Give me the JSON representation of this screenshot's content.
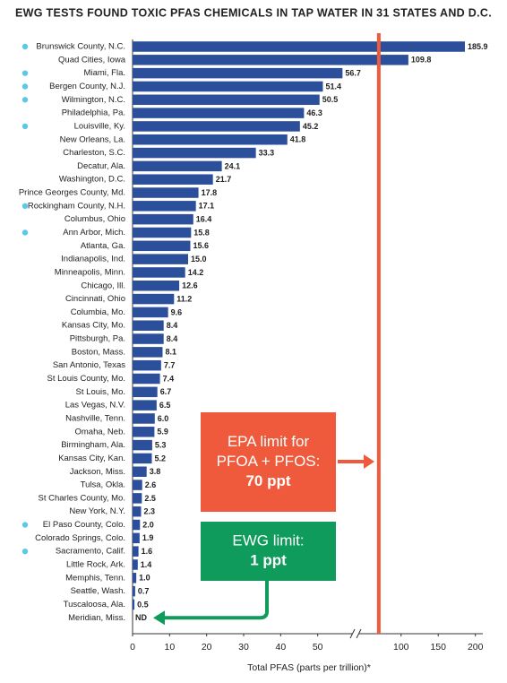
{
  "chart_data": {
    "type": "bar",
    "orientation": "horizontal",
    "title": "EWG TESTS FOUND TOXIC PFAS CHEMICALS IN TAP WATER IN 31 STATES AND D.C.",
    "x_label": "Total PFAS (parts per trillion)*",
    "categories": [
      "Brunswick County, N.C.",
      "Quad Cities, Iowa",
      "Miami, Fla.",
      "Bergen County, N.J.",
      "Wilmington, N.C.",
      "Philadelphia, Pa.",
      "Louisville, Ky.",
      "New Orleans, La.",
      "Charleston, S.C.",
      "Decatur, Ala.",
      "Washington, D.C.",
      "Prince Georges County, Md.",
      "Rockingham County, N.H.",
      "Columbus, Ohio",
      "Ann Arbor, Mich.",
      "Atlanta, Ga.",
      "Indianapolis, Ind.",
      "Minneapolis, Minn.",
      "Chicago, Ill.",
      "Cincinnati, Ohio",
      "Columbia, Mo.",
      "Kansas City, Mo.",
      "Pittsburgh, Pa.",
      "Boston, Mass.",
      "San Antonio, Texas",
      "St Louis County, Mo.",
      "St Louis, Mo.",
      "Las Vegas, N.V.",
      "Nashville, Tenn.",
      "Omaha, Neb.",
      "Birmingham, Ala.",
      "Kansas City, Kan.",
      "Jackson, Miss.",
      "Tulsa, Okla.",
      "St Charles County, Mo.",
      "New York, N.Y.",
      "El Paso County, Colo.",
      "Colorado Springs, Colo.",
      "Sacramento, Calif.",
      "Little Rock, Ark.",
      "Memphis, Tenn.",
      "Seattle, Wash.",
      "Tuscaloosa, Ala.",
      "Meridian, Miss."
    ],
    "values": [
      185.9,
      109.8,
      56.7,
      51.4,
      50.5,
      46.3,
      45.2,
      41.8,
      33.3,
      24.1,
      21.7,
      17.8,
      17.1,
      16.4,
      15.8,
      15.6,
      15.0,
      14.2,
      12.6,
      11.2,
      9.6,
      8.4,
      8.4,
      8.1,
      7.7,
      7.4,
      6.7,
      6.5,
      6.0,
      5.9,
      5.3,
      5.2,
      3.8,
      2.6,
      2.5,
      2.3,
      2.0,
      1.9,
      1.6,
      1.4,
      1.0,
      0.7,
      0.5,
      null
    ],
    "value_labels": [
      "185.9",
      "109.8",
      "56.7",
      "51.4",
      "50.5",
      "46.3",
      "45.2",
      "41.8",
      "33.3",
      "24.1",
      "21.7",
      "17.8",
      "17.1",
      "16.4",
      "15.8",
      "15.6",
      "15.0",
      "14.2",
      "12.6",
      "11.2",
      "9.6",
      "8.4",
      "8.4",
      "8.1",
      "7.7",
      "7.4",
      "6.7",
      "6.5",
      "6.0",
      "5.9",
      "5.3",
      "5.2",
      "3.8",
      "2.6",
      "2.5",
      "2.3",
      "2.0",
      "1.9",
      "1.6",
      "1.4",
      "1.0",
      "0.7",
      "0.5",
      "ND"
    ],
    "highlighted": [
      true,
      false,
      true,
      true,
      true,
      false,
      true,
      false,
      false,
      false,
      false,
      false,
      true,
      false,
      true,
      false,
      false,
      false,
      false,
      false,
      false,
      false,
      false,
      false,
      false,
      false,
      false,
      false,
      false,
      false,
      false,
      false,
      false,
      false,
      false,
      false,
      true,
      false,
      true,
      false,
      false,
      false,
      false,
      false
    ],
    "highlight_color": "#5bc8ea",
    "color": "#2c4f9c",
    "xlim": [
      0,
      210
    ],
    "xbreak": [
      60,
      40
    ],
    "xticks": [
      0,
      10,
      20,
      30,
      40,
      50,
      100,
      150,
      200
    ],
    "reference_line": {
      "value": 70,
      "color": "#ee5a3c"
    },
    "annotations": [
      {
        "lines": [
          "EPA limit for",
          "PFOA + PFOS:"
        ],
        "emphasis": "70 ppt",
        "color": "#f05a3c"
      },
      {
        "lines": [
          "EWG limit:"
        ],
        "emphasis": "1 ppt",
        "color": "#0f9b5b"
      }
    ]
  }
}
